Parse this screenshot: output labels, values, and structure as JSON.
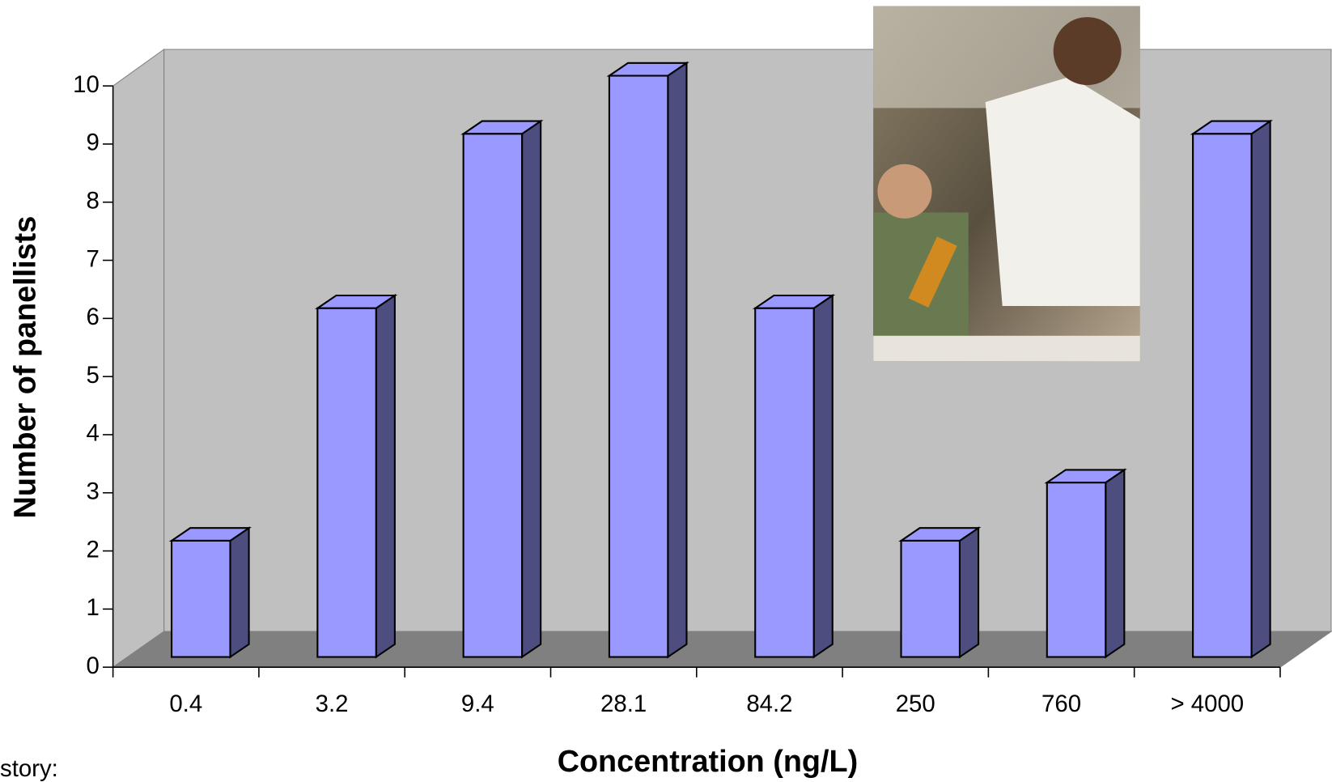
{
  "chart_data": {
    "type": "bar3d",
    "xlabel": "Concentration (ng/L)",
    "ylabel": "Number of panellists",
    "categories": [
      "0.4",
      "3.2",
      "9.4",
      "28.1",
      "84.2",
      "250",
      "760",
      "> 4000"
    ],
    "values": [
      2,
      6,
      9,
      10,
      6,
      2,
      3,
      9
    ],
    "color": "#9999ff",
    "side_color": "#4d4d80",
    "wall_color": "#c0c0c0",
    "floor_color": "#808080",
    "ylim": [
      0,
      10
    ],
    "yticks": [
      0,
      1,
      2,
      3,
      4,
      5,
      6,
      7,
      8,
      9,
      10
    ]
  },
  "note_text": "story:"
}
